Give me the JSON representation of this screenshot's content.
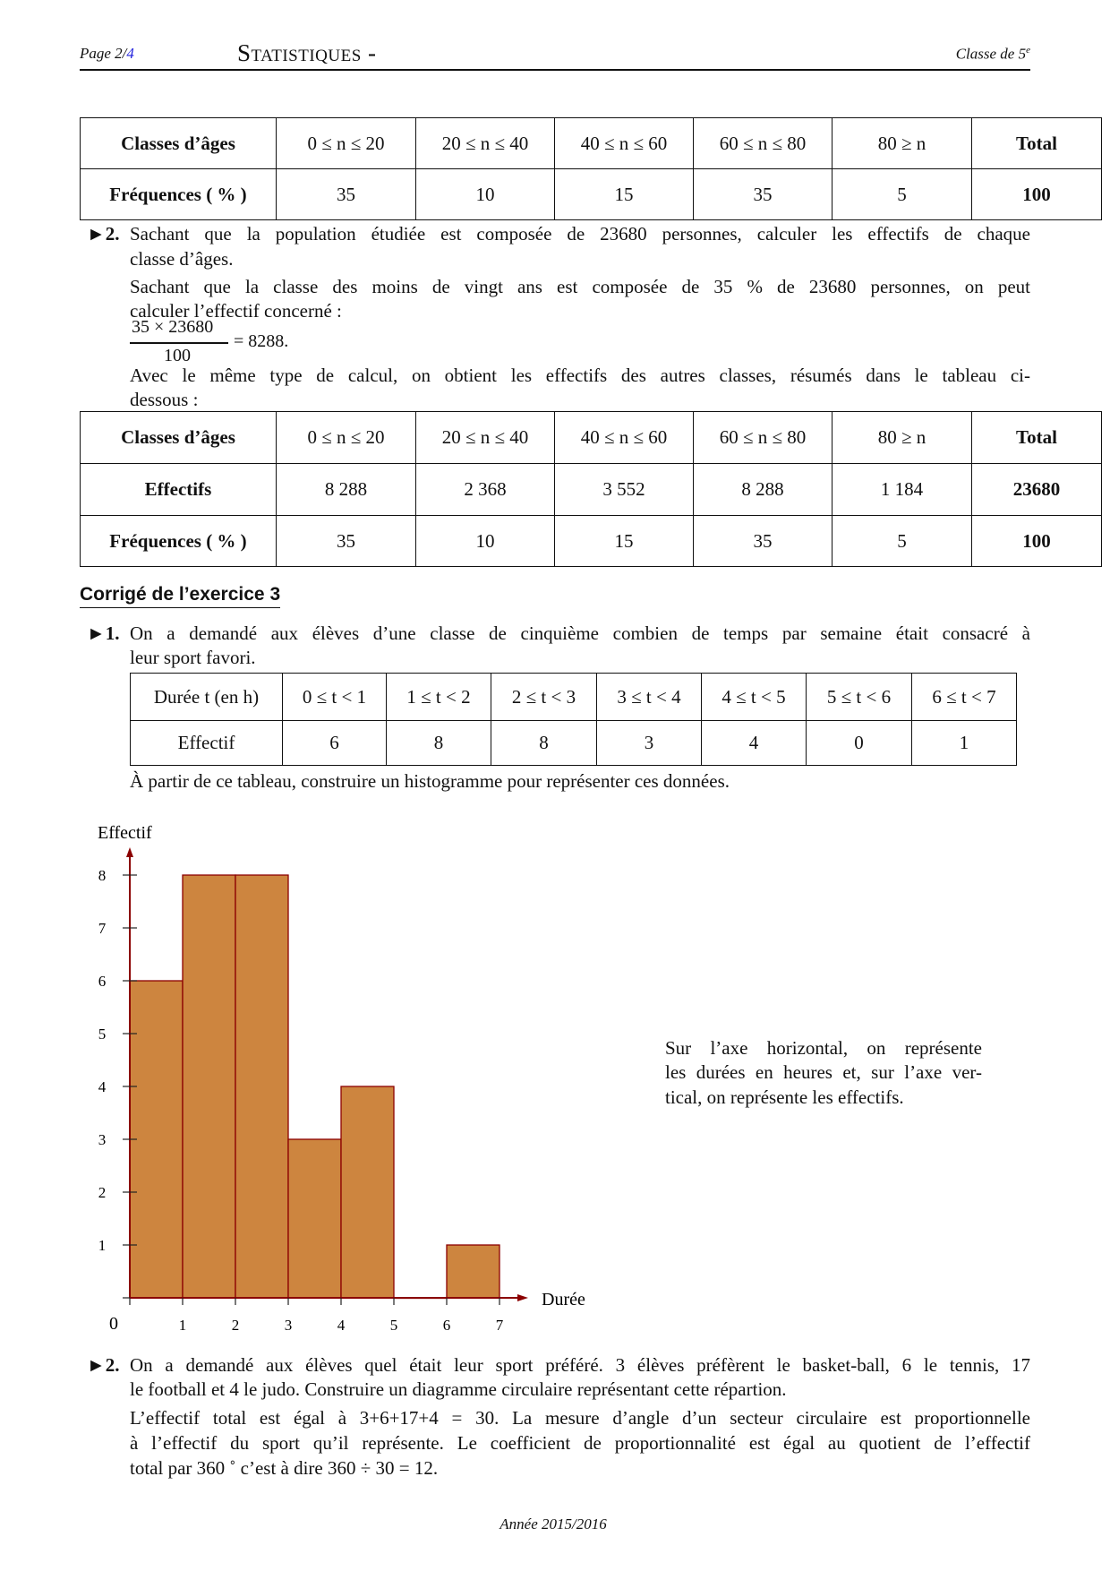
{
  "header": {
    "page_label": "Page 2/",
    "page_total": "4",
    "title": "Statistiques -",
    "class_label": "Classe de 5",
    "class_sup": "e"
  },
  "table1": {
    "rows": [
      [
        "Classes d’âges",
        "0 ≤ n ≤ 20",
        "20 ≤ n ≤ 40",
        "40 ≤ n ≤ 60",
        "60 ≤ n ≤ 80",
        "80 ≥ n",
        "Total"
      ],
      [
        "Fréquences ( % )",
        "35",
        "10",
        "15",
        "35",
        "5",
        "100"
      ]
    ]
  },
  "q2": {
    "marker": "►2.",
    "lines": [
      "Sachant que la population étudiée est composée de 23680 personnes, calculer les effectifs de chaque",
      "classe d’âges.",
      "Sachant que la classe des moins de vingt ans est composée de 35 % de 23680 personnes, on peut",
      "calculer l’effectif concerné :"
    ],
    "fraction": {
      "numerator": "35 × 23680",
      "denominator": "100",
      "result": "= 8288."
    },
    "after_lines": [
      "Avec le même type de calcul, on obtient les effectifs des autres classes, résumés dans le tableau ci-",
      "dessous :"
    ]
  },
  "table2": {
    "rows": [
      [
        "Classes d’âges",
        "0 ≤ n ≤ 20",
        "20 ≤ n ≤ 40",
        "40 ≤ n ≤ 60",
        "60 ≤ n ≤ 80",
        "80 ≥ n",
        "Total"
      ],
      [
        "Effectifs",
        "8 288",
        "2 368",
        "3 552",
        "8 288",
        "1 184",
        "23680"
      ],
      [
        "Fréquences ( % )",
        "35",
        "10",
        "15",
        "35",
        "5",
        "100"
      ]
    ]
  },
  "section_title": "Corrigé de l’exercice 3",
  "ex3q1": {
    "marker": "►1.",
    "lines": [
      "On a demandé aux élèves d’une classe de cinquième combien de temps par semaine était consacré à",
      "leur sport favori."
    ],
    "table": {
      "rows": [
        [
          "Durée t (en h)",
          "0 ≤ t < 1",
          "1 ≤ t < 2",
          "2 ≤ t < 3",
          "3 ≤ t < 4",
          "4 ≤ t < 5",
          "5 ≤ t < 6",
          "6 ≤ t < 7"
        ],
        [
          "Effectif",
          "6",
          "8",
          "8",
          "3",
          "4",
          "0",
          "1"
        ]
      ]
    },
    "instruction": "À partir de ce tableau, construire un histogramme pour représenter ces données."
  },
  "chart_data": {
    "type": "bar",
    "subtype": "histogram",
    "bins": [
      [
        0,
        1
      ],
      [
        1,
        2
      ],
      [
        2,
        3
      ],
      [
        3,
        4
      ],
      [
        4,
        5
      ],
      [
        5,
        6
      ],
      [
        6,
        7
      ]
    ],
    "values": [
      6,
      8,
      8,
      3,
      4,
      0,
      1
    ],
    "xlabel": "Durée",
    "ylabel": "Effectif",
    "origin_label": "0",
    "xticks": [
      "1",
      "2",
      "3",
      "4",
      "5",
      "6",
      "7"
    ],
    "yticks": [
      "1",
      "2",
      "3",
      "4",
      "5",
      "6",
      "7",
      "8"
    ],
    "xlim": [
      0,
      7
    ],
    "ylim": [
      0,
      8
    ],
    "grid": false,
    "colors": {
      "fill": "#CD853F",
      "stroke": "#8B0000"
    }
  },
  "chart_note": {
    "lines": [
      "Sur l’axe horizontal, on représente",
      "les durées en heures et, sur l’axe ver-",
      "tical, on représente les effectifs."
    ]
  },
  "ex3q2": {
    "marker": "►2.",
    "lines": [
      "On a demandé aux élèves quel était leur sport préféré. 3 élèves préfèrent le basket-ball, 6 le tennis, 17",
      "le football et 4 le judo. Construire un diagramme circulaire représentant cette répartion.",
      "L’effectif total est égal à 3+6+17+4 = 30. La mesure d’angle d’un secteur circulaire est proportionnelle",
      "à l’effectif du sport qu’il représente. Le coefficient de proportionnalité est égal au quotient de l’effectif",
      "total par 360 ˚ c’est à dire 360 ÷ 30 = 12."
    ]
  },
  "footer": "Année 2015/2016"
}
